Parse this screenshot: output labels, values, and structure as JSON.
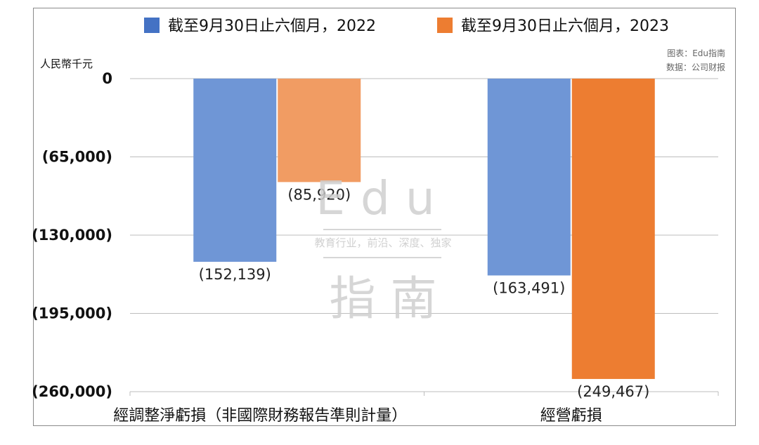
{
  "chart_data": {
    "type": "bar",
    "categories": [
      "經調整淨虧損（非國際財務報告準則計量）",
      "經營虧損"
    ],
    "series": [
      {
        "name": "截至9月30日止六個月，2022",
        "color": "#4472c4",
        "values": [
          -152139,
          -163491
        ],
        "labels": [
          "(152,139)",
          "(163,491)"
        ]
      },
      {
        "name": "截至9月30日止六個月，2023",
        "color": "#ed7d31",
        "values": [
          -85920,
          -249467
        ],
        "labels": [
          "(85,920)",
          "(249,467)"
        ]
      }
    ],
    "ylabel": "人民幣千元",
    "ylim": [
      -260000,
      0
    ],
    "yticks": [
      0,
      -65000,
      -130000,
      -195000,
      -260000
    ],
    "ytick_labels": [
      "0",
      "(65,000)",
      "(130,000)",
      "(195,000)",
      "(260,000)"
    ],
    "grid": true,
    "legend_position": "top"
  },
  "source": {
    "line1": "图表：Edu指南",
    "line2": "数据：公司财报"
  },
  "watermark": {
    "brand": "Edu",
    "tagline": "教育行业，前沿、深度、独家",
    "name": "指 南"
  }
}
